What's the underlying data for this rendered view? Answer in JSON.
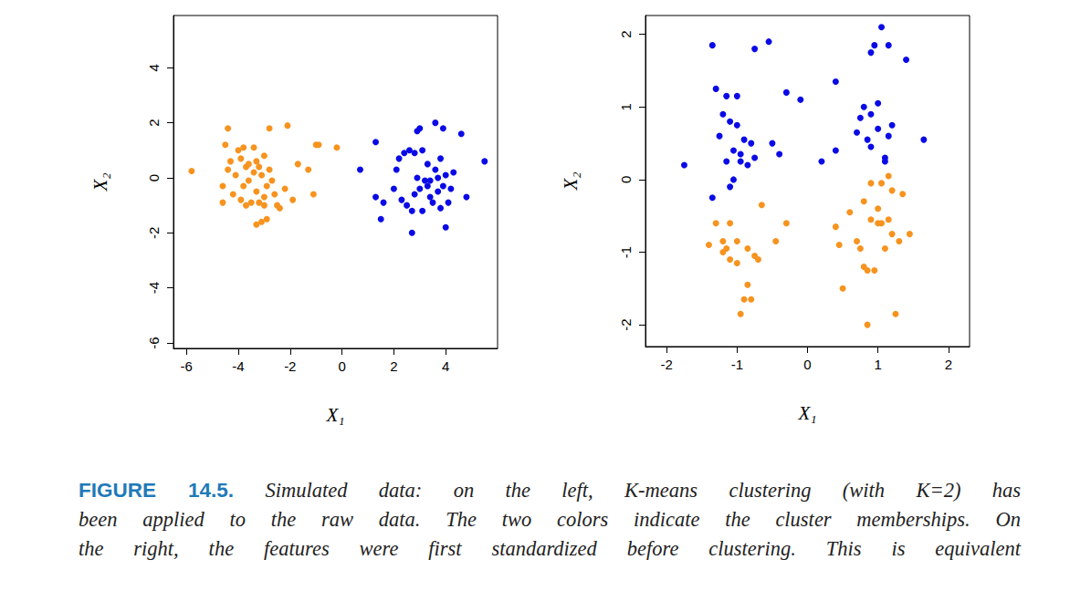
{
  "chart_data": [
    {
      "type": "scatter",
      "x_label": "X₁",
      "y_label": "X₂",
      "xlim": [
        -6.5,
        6
      ],
      "ylim": [
        -6.2,
        5.9
      ],
      "xticks": [
        -6,
        -4,
        -2,
        0,
        2,
        4
      ],
      "yticks": [
        -6,
        -4,
        -2,
        0,
        2,
        4
      ],
      "grid": false,
      "marker": "circle",
      "series": [
        {
          "color": "#f7931e",
          "x": [
            -5.8,
            -4.4,
            -4.5,
            -4.3,
            -4.4,
            -4.6,
            -4.6,
            -4.2,
            -4.0,
            -3.8,
            -3.9,
            -3.7,
            -3.6,
            -3.8,
            -3.9,
            -3.7,
            -3.5,
            -3.4,
            -3.3,
            -3.4,
            -3.2,
            -3.1,
            -3.3,
            -3.2,
            -3.0,
            -3.3,
            -3.1,
            -2.9,
            -3.0,
            -2.8,
            -2.7,
            -2.6,
            -2.5,
            -2.4,
            -2.8,
            -2.1,
            -2.2,
            -1.9,
            -1.7,
            -1.3,
            -1.1,
            -1.0,
            -0.9,
            -0.2,
            -2.9,
            -3.6,
            -4.1,
            -3.0
          ],
          "values": [
            0.25,
            1.8,
            1.2,
            0.6,
            0.3,
            -0.3,
            -0.9,
            -0.6,
            1.0,
            1.1,
            0.7,
            0.4,
            -0.1,
            -0.3,
            -0.8,
            -1.0,
            -0.9,
            1.1,
            0.6,
            0.2,
            0.4,
            0.1,
            -0.5,
            -0.9,
            -1.0,
            -1.7,
            -1.6,
            -1.5,
            0.8,
            0.3,
            -0.1,
            -0.6,
            -1.0,
            -1.1,
            1.8,
            1.9,
            -0.4,
            -0.8,
            0.5,
            0.3,
            -0.6,
            1.2,
            1.2,
            1.1,
            -0.3,
            0.5,
            0.1,
            -0.7
          ]
        },
        {
          "color": "#0a0ae6",
          "x": [
            0.7,
            1.3,
            1.3,
            1.5,
            1.6,
            2.0,
            2.1,
            2.2,
            2.3,
            2.4,
            2.5,
            2.6,
            2.7,
            2.7,
            2.8,
            2.9,
            3.0,
            3.0,
            2.9,
            3.1,
            3.1,
            3.2,
            3.3,
            3.3,
            3.4,
            3.5,
            3.6,
            3.6,
            3.7,
            3.7,
            3.8,
            3.8,
            3.9,
            3.9,
            4.0,
            4.0,
            4.1,
            4.2,
            4.3,
            4.6,
            4.8,
            5.5,
            3.4,
            2.8
          ],
          "values": [
            0.3,
            1.3,
            -0.7,
            -1.5,
            -0.9,
            -0.4,
            0.3,
            0.7,
            -0.8,
            0.9,
            -1.0,
            1.0,
            -1.2,
            -2.0,
            0.9,
            1.7,
            1.8,
            -0.4,
            0.0,
            1.0,
            -1.2,
            -0.1,
            -0.3,
            0.5,
            -0.7,
            -0.9,
            2.0,
            0.3,
            0.0,
            -0.5,
            0.7,
            -1.1,
            1.8,
            -0.3,
            -1.8,
            0.1,
            -0.9,
            -0.4,
            0.2,
            1.6,
            -0.7,
            0.6,
            -0.1,
            -0.6
          ]
        }
      ]
    },
    {
      "type": "scatter",
      "x_label": "X₁",
      "y_label": "X₂",
      "xlim": [
        -2.3,
        2.3
      ],
      "ylim": [
        -2.3,
        2.26
      ],
      "xticks": [
        -2,
        -1,
        0,
        1,
        2
      ],
      "yticks": [
        -2,
        -1,
        0,
        1,
        2
      ],
      "grid": false,
      "marker": "circle",
      "series": [
        {
          "color": "#f7931e",
          "x": [
            -1.4,
            -1.3,
            -1.2,
            -1.15,
            -1.1,
            -1.1,
            -1.0,
            -1.0,
            -0.95,
            -0.9,
            -0.85,
            -0.85,
            -0.8,
            -0.75,
            -0.7,
            -0.65,
            -0.45,
            -0.3,
            -1.2,
            0.4,
            0.45,
            0.5,
            0.6,
            0.7,
            0.75,
            0.8,
            0.85,
            0.85,
            0.9,
            0.9,
            0.95,
            1.0,
            1.0,
            1.05,
            1.1,
            1.15,
            1.15,
            1.2,
            1.2,
            1.25,
            1.3,
            1.35,
            1.45,
            1.05,
            0.8
          ],
          "values": [
            -0.9,
            -0.6,
            -0.85,
            -0.95,
            -0.6,
            -1.1,
            -1.15,
            -0.85,
            -1.85,
            -1.65,
            -1.45,
            -0.95,
            -1.65,
            -1.05,
            -1.1,
            -0.35,
            -0.85,
            -0.6,
            -1.0,
            -0.65,
            -0.9,
            -1.5,
            -0.45,
            -0.85,
            -0.95,
            -1.2,
            -1.25,
            -2.0,
            -0.05,
            -0.55,
            -1.25,
            -0.4,
            -0.6,
            -0.05,
            -0.95,
            0.05,
            -0.55,
            -0.15,
            -0.75,
            -1.85,
            -0.85,
            -0.2,
            -0.75,
            -0.6,
            -0.3
          ]
        },
        {
          "color": "#0a0ae6",
          "x": [
            -1.75,
            -1.35,
            -1.35,
            -1.3,
            -1.25,
            -1.2,
            -1.15,
            -1.15,
            -1.1,
            -1.05,
            -1.05,
            -1.0,
            -1.0,
            -0.95,
            -0.95,
            -0.9,
            -0.85,
            -0.8,
            -0.75,
            -0.75,
            -0.55,
            -0.5,
            -0.4,
            -0.3,
            -0.1,
            0.2,
            0.4,
            0.4,
            0.7,
            0.75,
            0.8,
            0.85,
            0.9,
            0.9,
            0.95,
            1.0,
            1.0,
            1.05,
            1.1,
            1.1,
            1.15,
            1.15,
            1.2,
            1.4,
            1.65,
            -1.1,
            0.9
          ],
          "values": [
            0.2,
            1.85,
            -0.25,
            1.25,
            0.6,
            0.9,
            1.15,
            0.25,
            -0.1,
            0.4,
            0.0,
            1.15,
            0.75,
            0.35,
            0.25,
            0.55,
            0.2,
            0.5,
            0.3,
            1.8,
            1.9,
            0.5,
            0.35,
            1.2,
            1.1,
            0.25,
            0.4,
            1.35,
            0.65,
            0.85,
            1.0,
            0.55,
            0.9,
            1.75,
            1.85,
            0.7,
            1.05,
            2.1,
            0.3,
            0.25,
            0.6,
            1.85,
            0.75,
            1.65,
            0.55,
            0.8,
            0.45
          ]
        }
      ]
    }
  ],
  "caption": {
    "label": "FIGURE 14.5.",
    "lines": [
      "Simulated data: on the left, K-means clustering (with K=2) has",
      "been applied to the raw data. The two colors indicate the cluster memberships. On",
      "the right, the features were first standardized before clustering. This is equivalent"
    ]
  }
}
